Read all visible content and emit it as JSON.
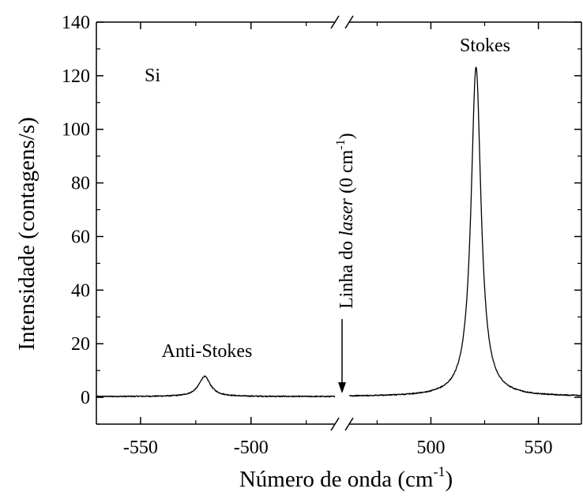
{
  "chart_data": {
    "type": "line",
    "xlabel": {
      "main": "Número de onda (cm",
      "sup": "-1",
      "tail": ")"
    },
    "ylabel": "Intensidade (contagens/s)",
    "ylim": [
      -10,
      140
    ],
    "y_ticks": [
      0,
      20,
      40,
      60,
      80,
      100,
      120,
      140
    ],
    "y_tick_labels": [
      "0",
      "20",
      "40",
      "60",
      "80",
      "100",
      "120",
      "140"
    ],
    "x_axis_broken": true,
    "x_segments": [
      {
        "range": [
          -570,
          -462
        ],
        "ticks": [
          -550,
          -500
        ],
        "tick_labels": [
          "-550",
          "-500"
        ]
      },
      {
        "range": [
          462,
          570
        ],
        "ticks": [
          500,
          550
        ],
        "tick_labels": [
          "500",
          "550"
        ]
      }
    ],
    "series": [
      {
        "peaks": [
          {
            "segment": 0,
            "center": -521,
            "height": 7.5,
            "hwhm": 3.2
          },
          {
            "segment": 1,
            "center": 521,
            "height": 123,
            "hwhm": 2.8
          }
        ],
        "baseline": 0.3
      }
    ],
    "grid": false
  },
  "annotations": {
    "sample": "Si",
    "stokes": "Stokes",
    "anti_stokes": "Anti-Stokes",
    "laser_line_prefix": "Linha do ",
    "laser_line_italic": "laser",
    "laser_line_mid": " (0 cm",
    "laser_line_sup": "-1",
    "laser_line_tail": ")"
  }
}
